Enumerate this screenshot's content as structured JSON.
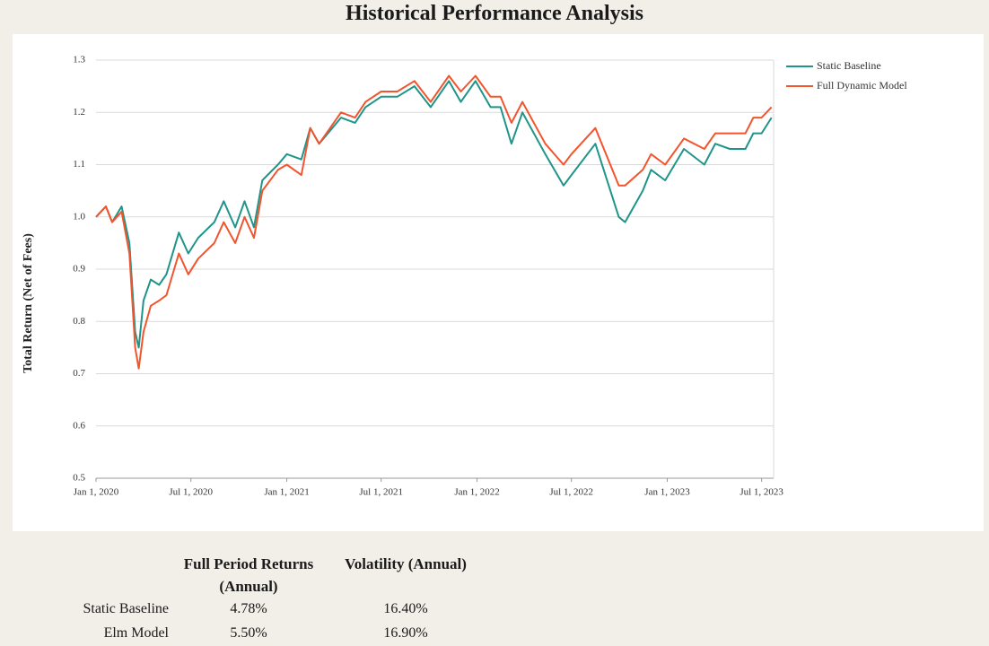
{
  "chart_data": {
    "type": "line",
    "title": "Historical Performance Analysis",
    "y_label": "Total Return (Net of Fees)",
    "x": [
      "2020-01-01",
      "2020-01-20",
      "2020-02-01",
      "2020-02-19",
      "2020-03-05",
      "2020-03-16",
      "2020-03-23",
      "2020-04-01",
      "2020-04-15",
      "2020-05-01",
      "2020-05-15",
      "2020-06-08",
      "2020-06-26",
      "2020-07-15",
      "2020-08-15",
      "2020-09-02",
      "2020-09-24",
      "2020-10-12",
      "2020-10-30",
      "2020-11-15",
      "2020-12-15",
      "2021-01-01",
      "2021-01-29",
      "2021-02-15",
      "2021-03-04",
      "2021-04-15",
      "2021-05-12",
      "2021-06-01",
      "2021-07-01",
      "2021-08-01",
      "2021-09-03",
      "2021-10-04",
      "2021-11-08",
      "2021-12-01",
      "2021-12-29",
      "2022-01-27",
      "2022-02-15",
      "2022-03-08",
      "2022-03-29",
      "2022-05-12",
      "2022-06-16",
      "2022-07-01",
      "2022-08-16",
      "2022-09-30",
      "2022-10-12",
      "2022-11-15",
      "2022-12-01",
      "2022-12-28",
      "2023-02-02",
      "2023-03-13",
      "2023-04-03",
      "2023-05-01",
      "2023-05-31",
      "2023-06-15",
      "2023-07-01",
      "2023-07-20"
    ],
    "series": [
      {
        "name": "Static Baseline",
        "color": "#1f9488",
        "values": [
          1.0,
          1.02,
          0.99,
          1.02,
          0.95,
          0.78,
          0.75,
          0.84,
          0.88,
          0.87,
          0.89,
          0.97,
          0.93,
          0.96,
          0.99,
          1.03,
          0.98,
          1.03,
          0.98,
          1.07,
          1.1,
          1.12,
          1.11,
          1.17,
          1.14,
          1.19,
          1.18,
          1.21,
          1.23,
          1.23,
          1.25,
          1.21,
          1.26,
          1.22,
          1.26,
          1.21,
          1.21,
          1.14,
          1.2,
          1.12,
          1.06,
          1.08,
          1.14,
          1.0,
          0.99,
          1.05,
          1.09,
          1.07,
          1.13,
          1.1,
          1.14,
          1.13,
          1.13,
          1.16,
          1.16,
          1.19
        ]
      },
      {
        "name": "Full Dynamic Model",
        "color": "#f2542d",
        "values": [
          1.0,
          1.02,
          0.99,
          1.01,
          0.93,
          0.75,
          0.71,
          0.78,
          0.83,
          0.84,
          0.85,
          0.93,
          0.89,
          0.92,
          0.95,
          0.99,
          0.95,
          1.0,
          0.96,
          1.05,
          1.09,
          1.1,
          1.08,
          1.17,
          1.14,
          1.2,
          1.19,
          1.22,
          1.24,
          1.24,
          1.26,
          1.22,
          1.27,
          1.24,
          1.27,
          1.23,
          1.23,
          1.18,
          1.22,
          1.14,
          1.1,
          1.12,
          1.17,
          1.06,
          1.06,
          1.09,
          1.12,
          1.1,
          1.15,
          1.13,
          1.16,
          1.16,
          1.16,
          1.19,
          1.19,
          1.21
        ]
      }
    ],
    "xlim": [
      "2020-01-01",
      "2023-07-24"
    ],
    "xticks": [
      {
        "value": "2020-01-01",
        "label": "Jan 1, 2020"
      },
      {
        "value": "2020-07-01",
        "label": "Jul 1, 2020"
      },
      {
        "value": "2021-01-01",
        "label": "Jan 1, 2021"
      },
      {
        "value": "2021-07-01",
        "label": "Jul 1, 2021"
      },
      {
        "value": "2022-01-01",
        "label": "Jan 1, 2022"
      },
      {
        "value": "2022-07-01",
        "label": "Jul 1, 2022"
      },
      {
        "value": "2023-01-01",
        "label": "Jan 1, 2023"
      },
      {
        "value": "2023-07-01",
        "label": "Jul 1, 2023"
      }
    ],
    "ylim": [
      0.5,
      1.3
    ],
    "yticks": [
      0.5,
      0.6,
      0.7,
      0.8,
      0.9,
      {
        "value": 1,
        "label": "1.0"
      },
      1.1,
      1.2,
      1.3
    ],
    "grid": true,
    "legend": "right"
  },
  "table": {
    "headers": [
      "Full Period Returns (Annual)",
      "Volatility (Annual)"
    ],
    "rows": [
      [
        "Static Baseline",
        "4.78%",
        "16.40%"
      ],
      [
        "Elm Model",
        "5.50%",
        "16.90%"
      ]
    ]
  }
}
